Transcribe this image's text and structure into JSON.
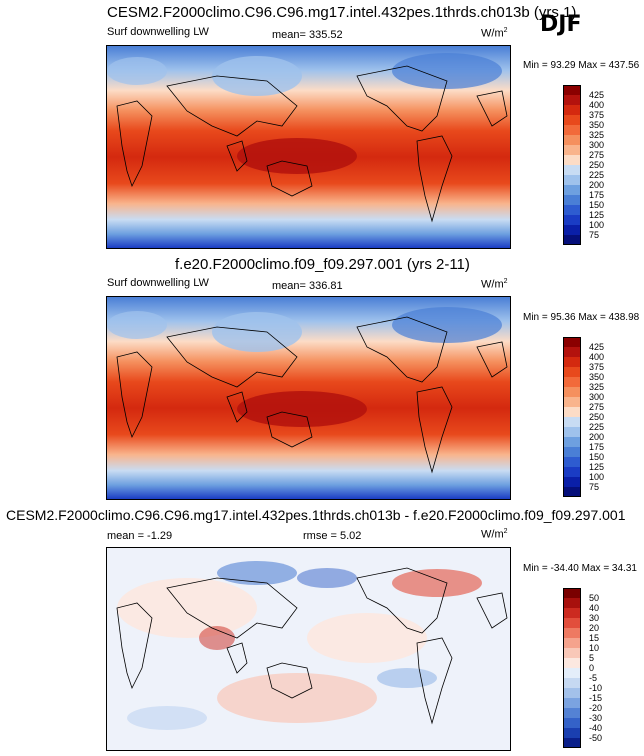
{
  "season": "DJF",
  "panels": [
    {
      "id": "model",
      "title": "CESM2.F2000climo.C96.C96.mg17.intel.432pes.1thrds.ch013b (yrs 1)",
      "left_label": "Surf downwelling LW",
      "center_label": "mean= 335.52",
      "units_base": "W/m",
      "units_exp": "2",
      "minmax": "Min =  93.29 Max = 437.56",
      "colorbar": {
        "labels": [
          "425",
          "400",
          "375",
          "350",
          "325",
          "300",
          "275",
          "250",
          "225",
          "200",
          "175",
          "150",
          "125",
          "100",
          "75"
        ],
        "colors": [
          "#8b0000",
          "#b3120d",
          "#d4290f",
          "#e8491c",
          "#f26a3a",
          "#f5905e",
          "#f9b48c",
          "#fcdcc6",
          "#c8dcf3",
          "#9fc2ec",
          "#6ea0e0",
          "#4a7fd6",
          "#2e5cd0",
          "#1a3cc4",
          "#0a1fa8",
          "#050f7a"
        ]
      }
    },
    {
      "id": "obs",
      "title": "f.e20.F2000climo.f09_f09.297.001 (yrs 2-11)",
      "left_label": "Surf downwelling LW",
      "center_label": "mean= 336.81",
      "units_base": "W/m",
      "units_exp": "2",
      "minmax": "Min =  95.36 Max = 438.98",
      "colorbar": {
        "labels": [
          "425",
          "400",
          "375",
          "350",
          "325",
          "300",
          "275",
          "250",
          "225",
          "200",
          "175",
          "150",
          "125",
          "100",
          "75"
        ],
        "colors": [
          "#8b0000",
          "#b3120d",
          "#d4290f",
          "#e8491c",
          "#f26a3a",
          "#f5905e",
          "#f9b48c",
          "#fcdcc6",
          "#c8dcf3",
          "#9fc2ec",
          "#6ea0e0",
          "#4a7fd6",
          "#2e5cd0",
          "#1a3cc4",
          "#0a1fa8",
          "#050f7a"
        ]
      }
    },
    {
      "id": "diff",
      "title": "CESM2.F2000climo.C96.C96.mg17.intel.432pes.1thrds.ch013b - f.e20.F2000climo.f09_f09.297.001",
      "left_label": "mean =  -1.29",
      "center_label": "rmse =   5.02",
      "units_base": "W/m",
      "units_exp": "2",
      "minmax": "Min = -34.40 Max =  34.31",
      "colorbar": {
        "labels": [
          "50",
          "40",
          "30",
          "20",
          "15",
          "10",
          "5",
          "0",
          "-5",
          "-10",
          "-15",
          "-20",
          "-30",
          "-40",
          "-50"
        ],
        "colors": [
          "#7a0000",
          "#a8100d",
          "#cc2a20",
          "#e24e3c",
          "#ee7a62",
          "#f5a38d",
          "#f9c8b8",
          "#fce8e0",
          "#e4eefa",
          "#c6d9f2",
          "#a3c1ea",
          "#7ba3e0",
          "#5482d4",
          "#3462c8",
          "#1a3fb0",
          "#0a1f8a"
        ]
      }
    }
  ]
}
